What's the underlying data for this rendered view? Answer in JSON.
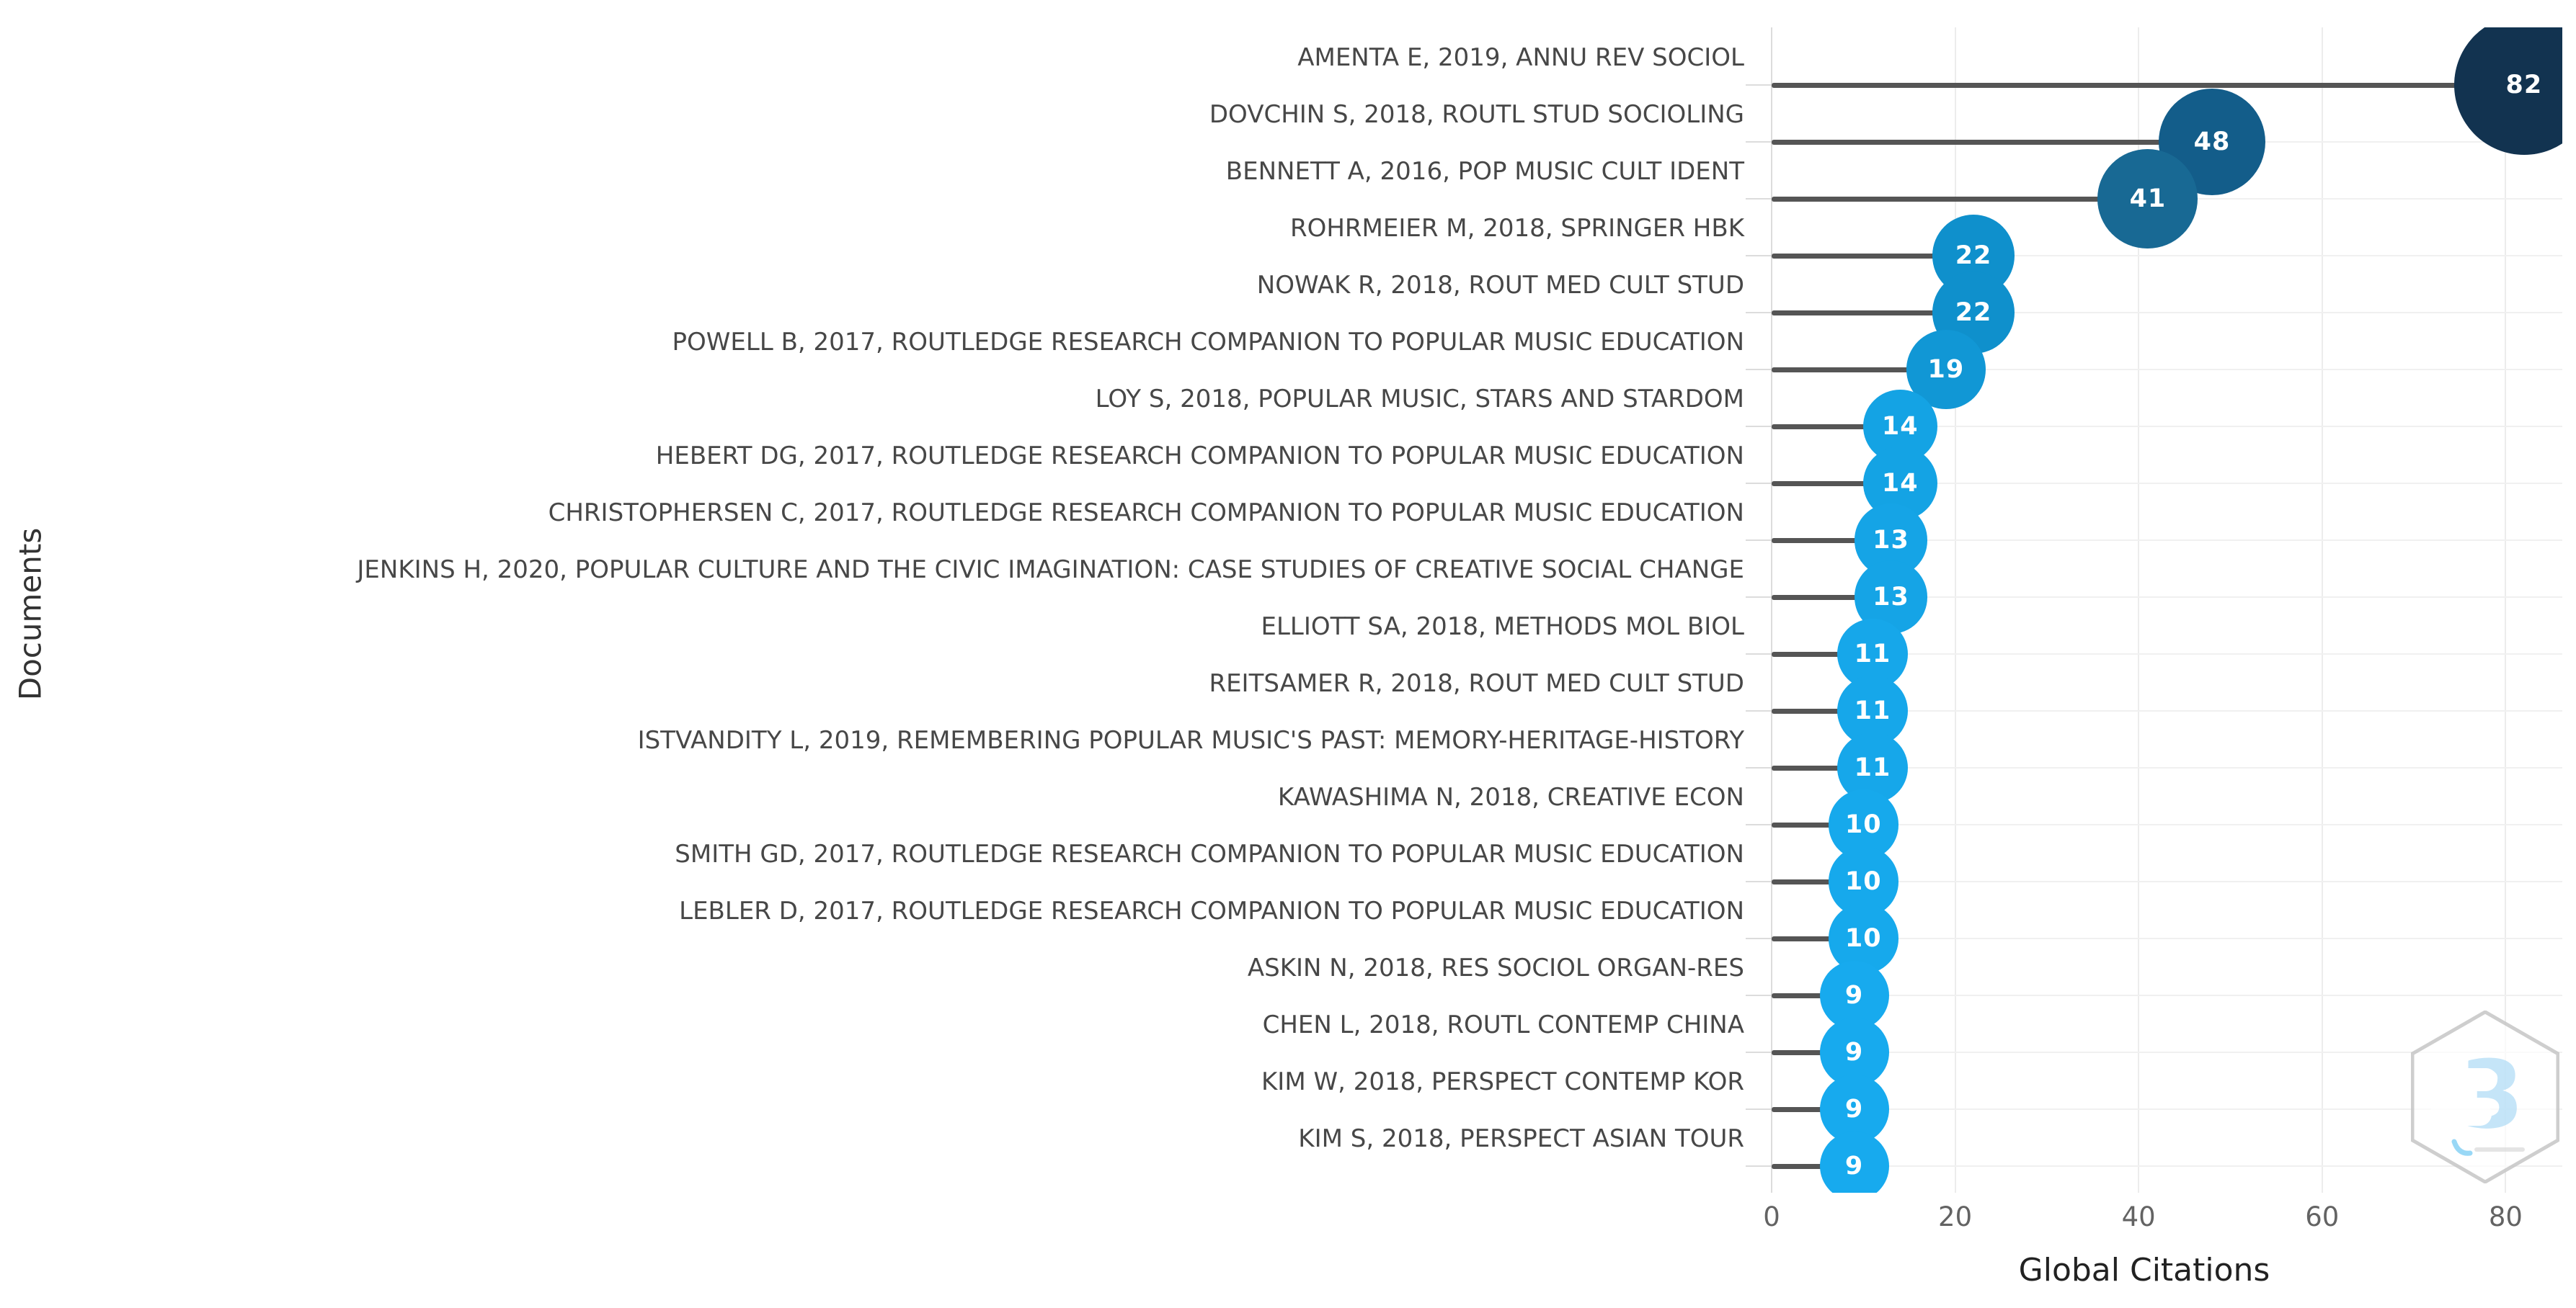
{
  "chart_data": {
    "type": "scatter",
    "variant": "lollipop-bubble",
    "title": "",
    "xlabel": "Global Citations",
    "ylabel": "Documents",
    "xticks": [
      0,
      20,
      40,
      60,
      80
    ],
    "xlim": [
      0,
      88
    ],
    "grid": true,
    "legend": "none",
    "points": [
      {
        "label": "AMENTA E, 2019, ANNU REV SOCIOL",
        "citations": 82
      },
      {
        "label": "DOVCHIN S, 2018, ROUTL STUD SOCIOLING",
        "citations": 48
      },
      {
        "label": "BENNETT A, 2016, POP MUSIC CULT IDENT",
        "citations": 41
      },
      {
        "label": "ROHRMEIER M, 2018, SPRINGER HBK",
        "citations": 22
      },
      {
        "label": "NOWAK R, 2018, ROUT MED CULT STUD",
        "citations": 22
      },
      {
        "label": "POWELL B, 2017, ROUTLEDGE RESEARCH COMPANION TO POPULAR MUSIC EDUCATION",
        "citations": 19
      },
      {
        "label": "LOY S, 2018, POPULAR MUSIC, STARS AND STARDOM",
        "citations": 14
      },
      {
        "label": "HEBERT DG, 2017, ROUTLEDGE RESEARCH COMPANION TO POPULAR MUSIC EDUCATION",
        "citations": 14
      },
      {
        "label": "CHRISTOPHERSEN C, 2017, ROUTLEDGE RESEARCH COMPANION TO POPULAR MUSIC EDUCATION",
        "citations": 13
      },
      {
        "label": "JENKINS H, 2020, POPULAR CULTURE AND THE CIVIC IMAGINATION: CASE STUDIES OF CREATIVE SOCIAL CHANGE",
        "citations": 13
      },
      {
        "label": "ELLIOTT SA, 2018, METHODS MOL BIOL",
        "citations": 11
      },
      {
        "label": "REITSAMER R, 2018, ROUT MED CULT STUD",
        "citations": 11
      },
      {
        "label": "ISTVANDITY L, 2019, REMEMBERING POPULAR MUSIC'S PAST: MEMORY-HERITAGE-HISTORY",
        "citations": 11
      },
      {
        "label": "KAWASHIMA N, 2018, CREATIVE ECON",
        "citations": 10
      },
      {
        "label": "SMITH GD, 2017, ROUTLEDGE RESEARCH COMPANION TO POPULAR MUSIC EDUCATION",
        "citations": 10
      },
      {
        "label": "LEBLER D, 2017, ROUTLEDGE RESEARCH COMPANION TO POPULAR MUSIC EDUCATION",
        "citations": 10
      },
      {
        "label": "ASKIN N, 2018, RES SOCIOL ORGAN-RES",
        "citations": 9
      },
      {
        "label": "CHEN L, 2018, ROUTL CONTEMP CHINA",
        "citations": 9
      },
      {
        "label": "KIM W, 2018, PERSPECT CONTEMP KOR",
        "citations": 9
      },
      {
        "label": "KIM S, 2018, PERSPECT ASIAN TOUR",
        "citations": 9
      }
    ],
    "color_scale": {
      "stops": [
        {
          "value": 9,
          "color": "#17aaee"
        },
        {
          "value": 14,
          "color": "#14a3e4"
        },
        {
          "value": 22,
          "color": "#0f90cc"
        },
        {
          "value": 41,
          "color": "#186994"
        },
        {
          "value": 48,
          "color": "#135d8a"
        },
        {
          "value": 82,
          "color": "#123350"
        }
      ]
    },
    "bubble_text_color": "#ffffff",
    "stem_color": "#555555",
    "gridline_color": "#ececec"
  },
  "watermark": {
    "glyph": "3",
    "icon": "bibliometrix-logo"
  }
}
